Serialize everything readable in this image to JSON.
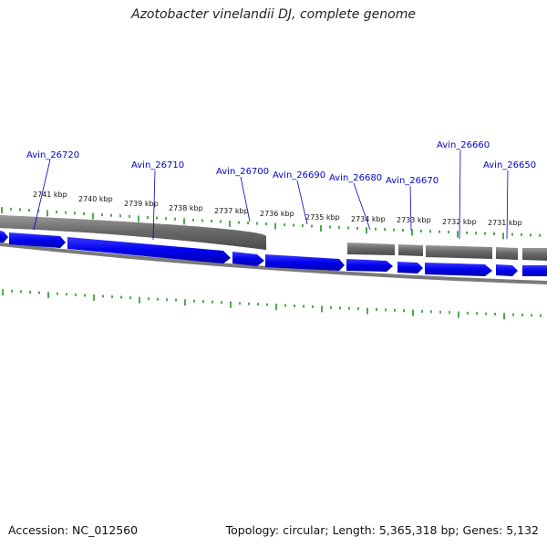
{
  "title": "Azotobacter vinelandii DJ, complete genome",
  "footer": {
    "accession_text": "Accession: NC_012560",
    "topology_text": "Topology: circular; Length: 5,365,318 bp; Genes: 5,132"
  },
  "colors": {
    "gene_forward": "#0000ee",
    "gene_reverse": "#6e6e6e",
    "backbone": "#7a7a7a",
    "tick": "#008800",
    "label": "#0000cc"
  },
  "scale_ticks": [
    "2741 kbp",
    "2740 kbp",
    "2739 kbp",
    "2738 kbp",
    "2737 kbp",
    "2736 kbp",
    "2735 kbp",
    "2734 kbp",
    "2733 kbp",
    "2732 kbp",
    "2731 kbp"
  ],
  "gene_labels": [
    "Avin_26720",
    "Avin_26710",
    "Avin_26700",
    "Avin_26690",
    "Avin_26680",
    "Avin_26670",
    "Avin_26660",
    "Avin_26650"
  ]
}
